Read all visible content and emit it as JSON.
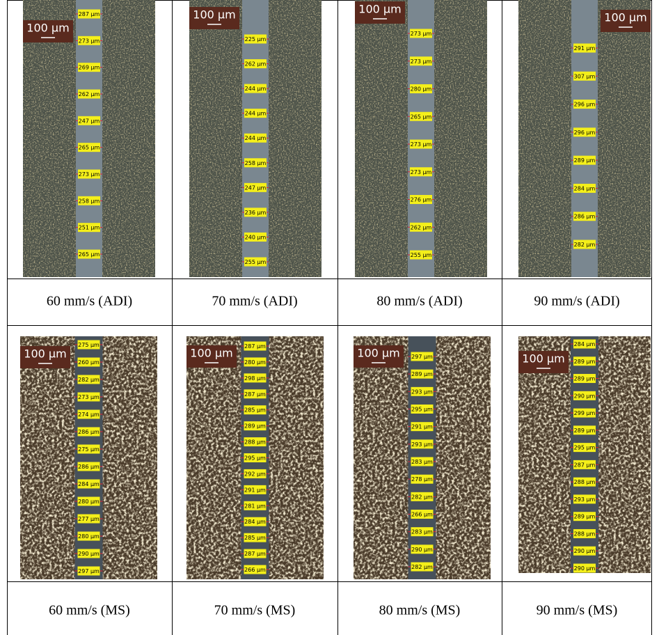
{
  "figure": {
    "image_rows": [
      [
        {
          "scale_bar": "100 µm",
          "measurements": [
            "287 µm",
            "273 µm",
            "269 µm",
            "262 µm",
            "247 µm",
            "265 µm",
            "273 µm",
            "258 µm",
            "251 µm",
            "265 µm"
          ]
        },
        {
          "scale_bar": "100 µm",
          "measurements": [
            "225 µm",
            "262 µm",
            "244 µm",
            "244 µm",
            "244 µm",
            "258 µm",
            "247 µm",
            "236 µm",
            "240 µm",
            "255 µm"
          ]
        },
        {
          "scale_bar": "100 µm",
          "measurements": [
            "273 µm",
            "273 µm",
            "280 µm",
            "265 µm",
            "273 µm",
            "273 µm",
            "276 µm",
            "262 µm",
            "255 µm"
          ]
        },
        {
          "scale_bar": "100 µm",
          "measurements": [
            "291 µm",
            "307 µm",
            "296 µm",
            "296 µm",
            "289 µm",
            "284 µm",
            "286 µm",
            "282 µm"
          ]
        }
      ],
      [
        {
          "scale_bar": "100 µm",
          "measurements": [
            "275 µm",
            "260 µm",
            "282 µm",
            "273 µm",
            "274 µm",
            "286 µm",
            "275 µm",
            "286 µm",
            "284 µm",
            "280 µm",
            "277 µm",
            "280 µm",
            "290 µm",
            "297 µm"
          ]
        },
        {
          "scale_bar": "100 µm",
          "measurements": [
            "287 µm",
            "280 µm",
            "298 µm",
            "287 µm",
            "285 µm",
            "289 µm",
            "288 µm",
            "295 µm",
            "292 µm",
            "291 µm",
            "281 µm",
            "284 µm",
            "285 µm",
            "287 µm",
            "266 µm"
          ]
        },
        {
          "scale_bar": "100 µm",
          "measurements": [
            "297 µm",
            "289 µm",
            "293 µm",
            "295 µm",
            "291 µm",
            "293 µm",
            "283 µm",
            "278 µm",
            "282 µm",
            "266 µm",
            "283 µm",
            "290 µm",
            "282 µm"
          ]
        },
        {
          "scale_bar": "100 µm",
          "measurements": [
            "284 µm",
            "289 µm",
            "289 µm",
            "290 µm",
            "299 µm",
            "289 µm",
            "295 µm",
            "287 µm",
            "288 µm",
            "293 µm",
            "289 µm",
            "288 µm",
            "290 µm",
            "290 µm"
          ]
        }
      ]
    ],
    "caption_rows": [
      [
        "60 mm/s (ADI)",
        "70 mm/s (ADI)",
        "80 mm/s (ADI)",
        "90 mm/s (ADI)"
      ],
      [
        "60 mm/s (MS)",
        "70 mm/s (MS)",
        "80 mm/s (MS)",
        "90 mm/s (MS)"
      ]
    ]
  }
}
